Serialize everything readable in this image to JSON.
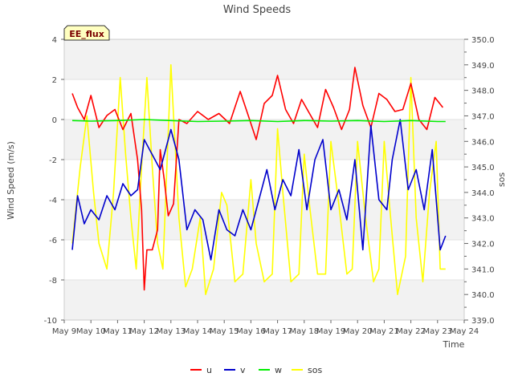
{
  "chart_data": {
    "type": "line",
    "title": "Wind Speeds",
    "xlabel": "Time",
    "ylabel": "Wind Speed (m/s)",
    "y2label": "sos",
    "station_tag": "EE_flux",
    "xlim": [
      9,
      24
    ],
    "ylim": [
      -10,
      4
    ],
    "y2lim": [
      339.0,
      350.0
    ],
    "x_ticks": [
      {
        "value": 9,
        "label": "May 9"
      },
      {
        "value": 10,
        "label": "May 10"
      },
      {
        "value": 11,
        "label": "May 11"
      },
      {
        "value": 12,
        "label": "May 12"
      },
      {
        "value": 13,
        "label": "May 13"
      },
      {
        "value": 14,
        "label": "May 14"
      },
      {
        "value": 15,
        "label": "May 15"
      },
      {
        "value": 16,
        "label": "May 16"
      },
      {
        "value": 17,
        "label": "May 17"
      },
      {
        "value": 18,
        "label": "May 18"
      },
      {
        "value": 19,
        "label": "May 19"
      },
      {
        "value": 20,
        "label": "May 20"
      },
      {
        "value": 21,
        "label": "May 21"
      },
      {
        "value": 22,
        "label": "May 22"
      },
      {
        "value": 23,
        "label": "May 23"
      },
      {
        "value": 24,
        "label": "May 24"
      }
    ],
    "y_ticks": [
      {
        "value": -10,
        "label": "-10"
      },
      {
        "value": -8,
        "label": "-8"
      },
      {
        "value": -6,
        "label": "-6"
      },
      {
        "value": -4,
        "label": "-4"
      },
      {
        "value": -2,
        "label": "-2"
      },
      {
        "value": 0,
        "label": "0"
      },
      {
        "value": 2,
        "label": "2"
      },
      {
        "value": 4,
        "label": "4"
      }
    ],
    "y2_ticks": [
      {
        "value": 339,
        "label": "339.0"
      },
      {
        "value": 340,
        "label": "340.0"
      },
      {
        "value": 341,
        "label": "341.0"
      },
      {
        "value": 342,
        "label": "342.0"
      },
      {
        "value": 343,
        "label": "343.0"
      },
      {
        "value": 344,
        "label": "344.0"
      },
      {
        "value": 345,
        "label": "345.0"
      },
      {
        "value": 346,
        "label": "346.0"
      },
      {
        "value": 347,
        "label": "347.0"
      },
      {
        "value": 348,
        "label": "348.0"
      },
      {
        "value": 349,
        "label": "349.0"
      },
      {
        "value": 350,
        "label": "350.0"
      }
    ],
    "legend_position": "bottom-center",
    "series": [
      {
        "name": "u",
        "color": "#ff0000",
        "axis": "left",
        "x": [
          9.3,
          9.5,
          9.75,
          10.0,
          10.3,
          10.6,
          10.9,
          11.2,
          11.5,
          11.75,
          11.9,
          12.0,
          12.1,
          12.3,
          12.5,
          12.6,
          12.75,
          12.9,
          13.1,
          13.3,
          13.6,
          14.0,
          14.4,
          14.8,
          15.2,
          15.6,
          15.9,
          16.2,
          16.5,
          16.8,
          17.0,
          17.3,
          17.6,
          17.9,
          18.2,
          18.5,
          18.8,
          19.1,
          19.4,
          19.7,
          19.9,
          20.2,
          20.5,
          20.8,
          21.1,
          21.4,
          21.7,
          22.0,
          22.3,
          22.6,
          22.9,
          23.2
        ],
        "y": [
          1.3,
          0.6,
          0.0,
          1.2,
          -0.4,
          0.2,
          0.5,
          -0.5,
          0.3,
          -2.0,
          -4.5,
          -8.5,
          -6.5,
          -6.5,
          -5.5,
          -1.5,
          -3.0,
          -4.8,
          -4.2,
          0.0,
          -0.2,
          0.4,
          0.0,
          0.3,
          -0.2,
          1.4,
          0.2,
          -1.0,
          0.8,
          1.2,
          2.2,
          0.5,
          -0.2,
          1.0,
          0.3,
          -0.4,
          1.5,
          0.6,
          -0.5,
          0.5,
          2.6,
          0.7,
          -0.4,
          1.3,
          1.0,
          0.4,
          0.5,
          1.8,
          0.0,
          -0.5,
          1.1,
          0.6
        ]
      },
      {
        "name": "v",
        "color": "#0000cc",
        "axis": "left",
        "x": [
          9.3,
          9.5,
          9.75,
          10.0,
          10.3,
          10.6,
          10.9,
          11.2,
          11.5,
          11.75,
          12.0,
          12.2,
          12.4,
          12.6,
          12.8,
          13.0,
          13.3,
          13.6,
          13.9,
          14.2,
          14.5,
          14.8,
          15.1,
          15.4,
          15.7,
          16.0,
          16.3,
          16.6,
          16.9,
          17.2,
          17.5,
          17.8,
          18.1,
          18.4,
          18.7,
          19.0,
          19.3,
          19.6,
          19.9,
          20.2,
          20.5,
          20.8,
          21.1,
          21.3,
          21.6,
          21.9,
          22.2,
          22.5,
          22.8,
          23.1,
          23.3
        ],
        "y": [
          -6.5,
          -3.8,
          -5.2,
          -4.5,
          -5.0,
          -3.8,
          -4.5,
          -3.2,
          -3.8,
          -3.5,
          -1.0,
          -1.5,
          -2.0,
          -2.5,
          -1.5,
          -0.5,
          -2.0,
          -5.5,
          -4.5,
          -5.0,
          -7.0,
          -4.5,
          -5.5,
          -5.8,
          -4.5,
          -5.5,
          -4.0,
          -2.5,
          -4.5,
          -3.0,
          -3.8,
          -1.5,
          -4.5,
          -2.0,
          -1.0,
          -4.5,
          -3.5,
          -5.0,
          -2.0,
          -6.5,
          -0.3,
          -4.0,
          -4.5,
          -2.0,
          0.0,
          -3.5,
          -2.5,
          -4.5,
          -1.5,
          -6.5,
          -5.8
        ]
      },
      {
        "name": "w",
        "color": "#00ee00",
        "axis": "left",
        "x": [
          9.3,
          10.0,
          11.0,
          12.0,
          13.0,
          14.0,
          15.0,
          16.0,
          17.0,
          18.0,
          19.0,
          20.0,
          21.0,
          22.0,
          23.0,
          23.3
        ],
        "y": [
          -0.05,
          -0.08,
          -0.05,
          0.0,
          -0.05,
          -0.1,
          -0.08,
          -0.05,
          -0.1,
          -0.05,
          -0.08,
          -0.05,
          -0.1,
          -0.05,
          -0.1,
          -0.1
        ]
      },
      {
        "name": "sos",
        "color": "#ffff00",
        "axis": "right",
        "x": [
          9.3,
          9.6,
          9.85,
          10.1,
          10.3,
          10.6,
          10.85,
          11.1,
          11.3,
          11.5,
          11.7,
          11.9,
          12.1,
          12.3,
          12.5,
          12.7,
          12.85,
          13.0,
          13.1,
          13.3,
          13.55,
          13.8,
          14.1,
          14.3,
          14.6,
          14.9,
          15.1,
          15.4,
          15.7,
          16.0,
          16.2,
          16.5,
          16.8,
          17.0,
          17.2,
          17.5,
          17.8,
          18.0,
          18.2,
          18.5,
          18.8,
          19.0,
          19.3,
          19.6,
          19.8,
          20.0,
          20.3,
          20.6,
          20.8,
          21.0,
          21.2,
          21.5,
          21.8,
          22.0,
          22.2,
          22.45,
          22.7,
          22.95,
          23.1,
          23.3
        ],
        "y": [
          342.0,
          345.0,
          347.0,
          344.0,
          342.0,
          341.0,
          344.0,
          348.5,
          345.5,
          343.0,
          341.0,
          345.0,
          348.5,
          345.0,
          342.0,
          341.0,
          345.0,
          349.0,
          347.0,
          343.0,
          340.3,
          341.0,
          343.0,
          340.0,
          341.0,
          344.0,
          343.5,
          340.5,
          340.8,
          344.5,
          342.0,
          340.5,
          340.8,
          346.5,
          344.0,
          340.5,
          340.8,
          345.5,
          343.5,
          340.8,
          340.8,
          346.0,
          343.5,
          340.8,
          341.0,
          346.0,
          343.0,
          340.5,
          341.0,
          346.0,
          343.5,
          340.0,
          341.5,
          348.5,
          343.0,
          340.5,
          344.0,
          346.0,
          341.0,
          341.0
        ]
      }
    ]
  }
}
